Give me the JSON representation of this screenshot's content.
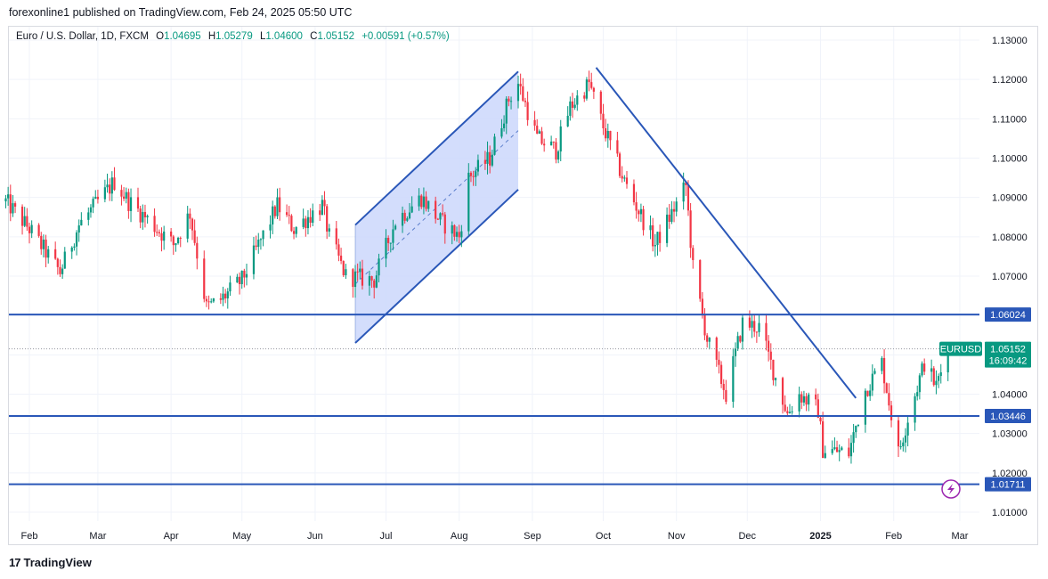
{
  "header": {
    "published": "forexonline1 published on TradingView.com, Feb 24, 2025 05:50 UTC"
  },
  "symbol_line": {
    "symbol": "Euro / U.S. Dollar, 1D, FXCM",
    "o_label": "O",
    "o_value": "1.04695",
    "h_label": "H",
    "h_value": "1.05279",
    "l_label": "L",
    "l_value": "1.04600",
    "c_label": "C",
    "c_value": "1.05152",
    "change": "+0.00591 (+0.57%)"
  },
  "footer": {
    "logo_glyph": "17",
    "brand": "TradingView"
  },
  "colors": {
    "up": "#089981",
    "down": "#f23645",
    "line": "#2a57b8",
    "channel_fill": "#cbd7fb",
    "tag": "#2a57b8"
  },
  "chart_data": {
    "type": "candlestick",
    "symbol": "EURUSD",
    "timeframe": "1D",
    "ylim": [
      1.0045,
      1.135
    ],
    "y_ticks": [
      "1.13000",
      "1.12000",
      "1.11000",
      "1.10000",
      "1.09000",
      "1.08000",
      "1.07000",
      "1.06000",
      "1.05000",
      "1.04000",
      "1.03000",
      "1.02000",
      "1.01000"
    ],
    "x_ticks": [
      {
        "label": "Feb",
        "date": "2024-02-01",
        "bold": false
      },
      {
        "label": "Mar",
        "date": "2024-03-01",
        "bold": false
      },
      {
        "label": "Apr",
        "date": "2024-04-01",
        "bold": false
      },
      {
        "label": "May",
        "date": "2024-05-01",
        "bold": false
      },
      {
        "label": "Jun",
        "date": "2024-06-01",
        "bold": false
      },
      {
        "label": "Jul",
        "date": "2024-07-01",
        "bold": false
      },
      {
        "label": "Aug",
        "date": "2024-08-01",
        "bold": false
      },
      {
        "label": "Sep",
        "date": "2024-09-01",
        "bold": false
      },
      {
        "label": "Oct",
        "date": "2024-10-01",
        "bold": false
      },
      {
        "label": "Nov",
        "date": "2024-11-01",
        "bold": false
      },
      {
        "label": "Dec",
        "date": "2024-12-01",
        "bold": false
      },
      {
        "label": "2025",
        "date": "2025-01-01",
        "bold": true
      },
      {
        "label": "Feb",
        "date": "2025-02-01",
        "bold": false
      },
      {
        "label": "Mar",
        "date": "2025-03-01",
        "bold": false
      }
    ],
    "price_path": [
      [
        "2024-01-22",
        1.089
      ],
      [
        "2024-02-01",
        1.082
      ],
      [
        "2024-02-14",
        1.071
      ],
      [
        "2024-02-22",
        1.083
      ],
      [
        "2024-03-08",
        1.094
      ],
      [
        "2024-03-14",
        1.089
      ],
      [
        "2024-03-21",
        1.085
      ],
      [
        "2024-04-02",
        1.078
      ],
      [
        "2024-04-09",
        1.086
      ],
      [
        "2024-04-16",
        1.062
      ],
      [
        "2024-04-22",
        1.064
      ],
      [
        "2024-05-01",
        1.069
      ],
      [
        "2024-05-16",
        1.088
      ],
      [
        "2024-05-23",
        1.082
      ],
      [
        "2024-06-04",
        1.088
      ],
      [
        "2024-06-07",
        1.08
      ],
      [
        "2024-06-14",
        1.07
      ],
      [
        "2024-06-26",
        1.069
      ],
      [
        "2024-07-05",
        1.084
      ],
      [
        "2024-07-16",
        1.09
      ],
      [
        "2024-07-24",
        1.084
      ],
      [
        "2024-08-01",
        1.08
      ],
      [
        "2024-08-05",
        1.095
      ],
      [
        "2024-08-14",
        1.1
      ],
      [
        "2024-08-22",
        1.115
      ],
      [
        "2024-08-26",
        1.119
      ],
      [
        "2024-09-03",
        1.105
      ],
      [
        "2024-09-11",
        1.102
      ],
      [
        "2024-09-17",
        1.113
      ],
      [
        "2024-09-25",
        1.119
      ],
      [
        "2024-10-01",
        1.108
      ],
      [
        "2024-10-10",
        1.094
      ],
      [
        "2024-10-23",
        1.078
      ],
      [
        "2024-10-30",
        1.086
      ],
      [
        "2024-11-05",
        1.093
      ],
      [
        "2024-11-08",
        1.072
      ],
      [
        "2024-11-14",
        1.054
      ],
      [
        "2024-11-22",
        1.04
      ],
      [
        "2024-11-29",
        1.058
      ],
      [
        "2024-12-06",
        1.057
      ],
      [
        "2024-12-18",
        1.035
      ],
      [
        "2024-12-23",
        1.04
      ],
      [
        "2024-12-31",
        1.036
      ],
      [
        "2025-01-02",
        1.026
      ],
      [
        "2025-01-13",
        1.025
      ],
      [
        "2025-01-20",
        1.041
      ],
      [
        "2025-01-27",
        1.048
      ],
      [
        "2025-02-03",
        1.025
      ],
      [
        "2025-02-07",
        1.034
      ],
      [
        "2025-02-14",
        1.048
      ],
      [
        "2025-02-19",
        1.042
      ],
      [
        "2025-02-24",
        1.0515
      ]
    ],
    "hlines": [
      {
        "price": 1.06024,
        "label": "1.06024"
      },
      {
        "price": 1.03446,
        "label": "1.03446"
      },
      {
        "price": 1.01711,
        "label": "1.01711"
      }
    ],
    "channel": {
      "upper": [
        [
          "2024-06-18",
          1.083
        ],
        [
          "2024-08-26",
          1.122
        ]
      ],
      "lower": [
        [
          "2024-06-18",
          1.053
        ],
        [
          "2024-08-26",
          1.092
        ]
      ],
      "mid": [
        [
          "2024-06-18",
          1.068
        ],
        [
          "2024-08-26",
          1.107
        ]
      ]
    },
    "trendline": [
      [
        "2024-09-28",
        1.123
      ],
      [
        "2025-01-16",
        1.039
      ]
    ],
    "last_price": {
      "symbol": "EURUSD",
      "price": "1.05152",
      "countdown": "16:09:42",
      "value": 1.05152
    }
  }
}
